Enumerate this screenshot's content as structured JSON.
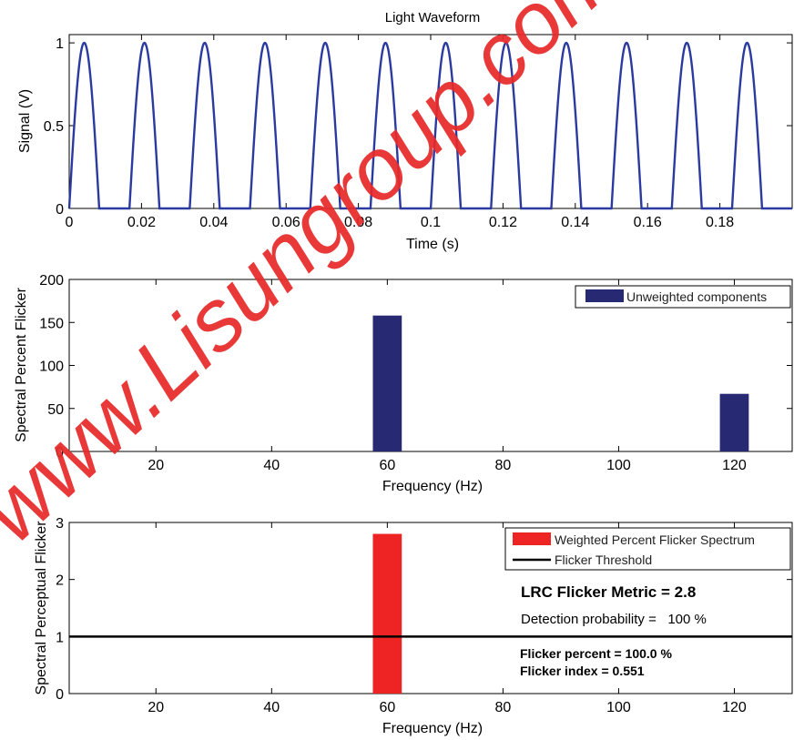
{
  "chart_data": [
    {
      "type": "line",
      "title": "Light Waveform",
      "xlabel": "Time (s)",
      "ylabel": "Signal (V)",
      "xlim": [
        0,
        0.2
      ],
      "ylim": [
        0,
        1.05
      ],
      "xticks": [
        "0",
        "0.02",
        "0.04",
        "0.06",
        "0.08",
        "0.1",
        "0.12",
        "0.14",
        "0.16",
        "0.18"
      ],
      "yticks": [
        "0",
        "0.5",
        "1"
      ],
      "series": [
        {
          "color": "#2b3aa0",
          "period": 0.01667,
          "pulse_width": 0.0083,
          "first_pulse_start": 0,
          "peak": 1,
          "baseline": 0
        }
      ]
    },
    {
      "type": "bar",
      "xlabel": "Frequency (Hz)",
      "ylabel": "Spectral Percent Flicker",
      "xlim": [
        5,
        130
      ],
      "ylim": [
        0,
        200
      ],
      "xticks": [
        "20",
        "40",
        "60",
        "80",
        "100",
        "120"
      ],
      "yticks": [
        "0",
        "50",
        "100",
        "150",
        "200"
      ],
      "legend": {
        "location": "top-right",
        "entries": [
          "Unweighted components"
        ]
      },
      "series": [
        {
          "name": "Unweighted components",
          "color": "#272a72",
          "x": [
            60,
            120
          ],
          "values": [
            158,
            67
          ],
          "bar_width": 5
        }
      ]
    },
    {
      "type": "bar",
      "xlabel": "Frequency (Hz)",
      "ylabel": "Spectral Perceptual Flicker",
      "xlim": [
        5,
        130
      ],
      "ylim": [
        0,
        3
      ],
      "xticks": [
        "20",
        "40",
        "60",
        "80",
        "100",
        "120"
      ],
      "yticks": [
        "0",
        "1",
        "2",
        "3"
      ],
      "legend": {
        "location": "top-right",
        "entries": [
          "Weighted Percent Flicker Spectrum",
          "Flicker Threshold"
        ]
      },
      "series": [
        {
          "name": "Weighted Percent Flicker Spectrum",
          "color": "#ee2424",
          "x": [
            60
          ],
          "values": [
            2.8
          ],
          "bar_width": 5
        }
      ],
      "threshold": {
        "name": "Flicker Threshold",
        "value": 1,
        "color": "#000000"
      },
      "annotations": {
        "metric": "LRC Flicker Metric = 2.8",
        "detection": "Detection probability =   100 %",
        "percent": "Flicker percent = 100.0 %",
        "index": "Flicker index = 0.551"
      }
    }
  ],
  "watermark": "www.Lisungroup.com"
}
